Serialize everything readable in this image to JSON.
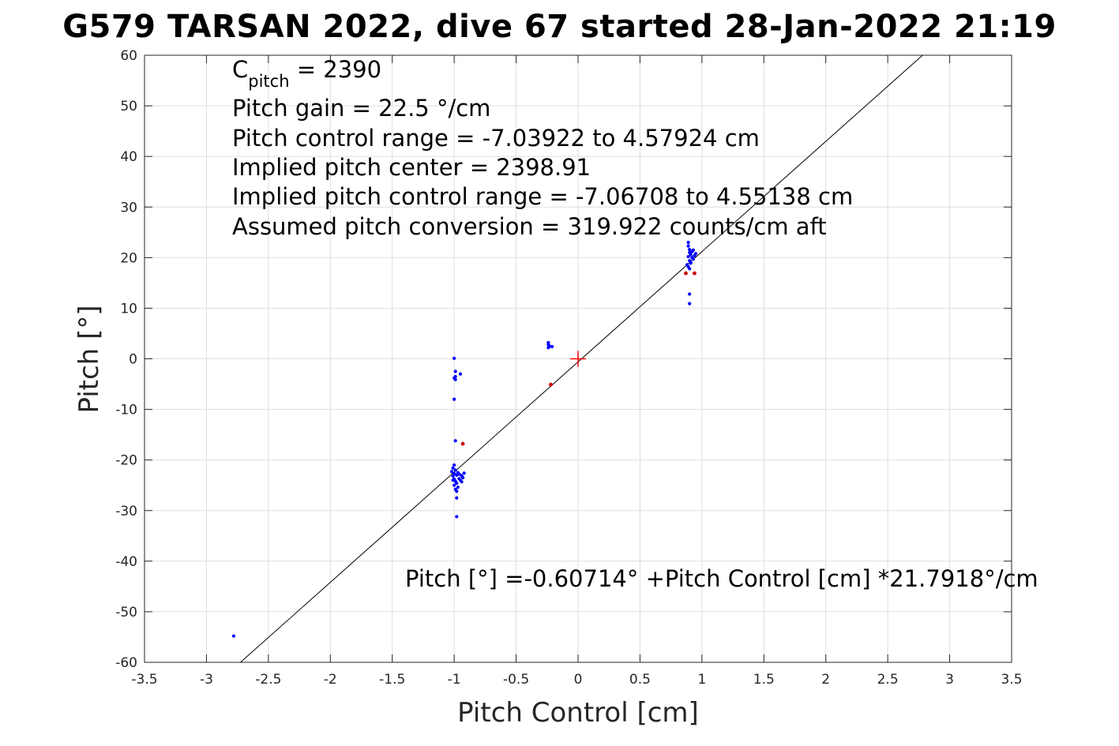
{
  "chart_data": {
    "type": "scatter",
    "title": "G579 TARSAN 2022, dive 67 started 28-Jan-2022 21:19",
    "xlabel": "Pitch Control [cm]",
    "ylabel": "Pitch [°]",
    "xlim": [
      -3.5,
      3.5
    ],
    "ylim": [
      -60,
      60
    ],
    "grid": true,
    "xticks": [
      -3.5,
      -3,
      -2.5,
      -2,
      -1.5,
      -1,
      -0.5,
      0,
      0.5,
      1,
      1.5,
      2,
      2.5,
      3,
      3.5
    ],
    "xtick_labels": [
      "-3.5",
      "-3",
      "-2.5",
      "-2",
      "-1.5",
      "-1",
      "-0.5",
      "0",
      "0.5",
      "1",
      "1.5",
      "2",
      "2.5",
      "3",
      "3.5"
    ],
    "yticks": [
      60,
      50,
      40,
      30,
      20,
      10,
      0,
      -10,
      -20,
      -30,
      -40,
      -50,
      -60
    ],
    "ytick_labels": [
      "60",
      "50",
      "40",
      "30",
      "20",
      "10",
      "0",
      "-10",
      "-20",
      "-30",
      "-40",
      "-50",
      "-60"
    ],
    "annotations": {
      "c_pitch_main": "C",
      "c_pitch_sub": "pitch",
      "c_pitch_value": " = 2390",
      "lines": [
        "Pitch gain = 22.5 °/cm",
        "Pitch control range = -7.03922 to 4.57924 cm",
        "Implied pitch center = 2398.91",
        "Implied pitch control range = -7.06708 to 4.55138 cm",
        "Assumed pitch conversion = 319.922 counts/cm aft"
      ],
      "fit_equation": "Pitch [°] =-0.60714° +Pitch Control [cm] *21.7918°/cm"
    },
    "fit_line": {
      "intercept": -0.60714,
      "slope": 21.7918,
      "color": "#000000"
    },
    "center_marker": {
      "x": 0,
      "y": 0,
      "color": "#ff0000"
    },
    "series": [
      {
        "color": "#0000ff",
        "points": [
          [
            -2.78,
            -54.8
          ],
          [
            -1.0,
            0.1
          ],
          [
            -0.99,
            -2.5
          ],
          [
            -0.99,
            -3.5
          ],
          [
            -1.0,
            -3.8
          ],
          [
            -0.99,
            -4.1
          ],
          [
            -0.95,
            -3.0
          ],
          [
            -1.0,
            -8.0
          ],
          [
            -0.99,
            -16.2
          ],
          [
            -1.0,
            -21.0
          ],
          [
            -1.01,
            -21.6
          ],
          [
            -0.99,
            -22.0
          ],
          [
            -1.02,
            -22.3
          ],
          [
            -0.97,
            -22.5
          ],
          [
            -1.0,
            -22.7
          ],
          [
            -0.98,
            -23.0
          ],
          [
            -1.01,
            -23.2
          ],
          [
            -0.96,
            -22.8
          ],
          [
            -0.94,
            -23.1
          ],
          [
            -0.93,
            -23.5
          ],
          [
            -0.95,
            -24.0
          ],
          [
            -0.92,
            -22.6
          ],
          [
            -1.0,
            -23.8
          ],
          [
            -0.99,
            -24.2
          ],
          [
            -0.98,
            -24.6
          ],
          [
            -1.0,
            -25.0
          ],
          [
            -0.97,
            -25.4
          ],
          [
            -0.99,
            -25.8
          ],
          [
            -0.96,
            -23.7
          ],
          [
            -0.94,
            -24.3
          ],
          [
            -1.01,
            -24.0
          ],
          [
            -0.98,
            -26.2
          ],
          [
            -0.98,
            -27.5
          ],
          [
            -0.98,
            -31.2
          ],
          [
            -0.24,
            3.2
          ],
          [
            -0.24,
            2.8
          ],
          [
            -0.23,
            2.5
          ],
          [
            -0.24,
            2.2
          ],
          [
            -0.21,
            2.4
          ],
          [
            0.89,
            23.0
          ],
          [
            0.89,
            22.3
          ],
          [
            0.9,
            21.6
          ],
          [
            0.9,
            21.0
          ],
          [
            0.91,
            20.6
          ],
          [
            0.89,
            20.2
          ],
          [
            0.92,
            20.0
          ],
          [
            0.93,
            19.7
          ],
          [
            0.9,
            19.4
          ],
          [
            0.91,
            19.0
          ],
          [
            0.94,
            20.4
          ],
          [
            0.95,
            20.8
          ],
          [
            0.92,
            21.2
          ],
          [
            0.88,
            18.6
          ],
          [
            0.89,
            18.2
          ],
          [
            0.9,
            17.8
          ],
          [
            0.91,
            18.9
          ],
          [
            0.93,
            21.5
          ],
          [
            0.9,
            12.8
          ],
          [
            0.9,
            10.9
          ]
        ]
      },
      {
        "color": "#cc0000",
        "points": [
          [
            -0.93,
            -16.8
          ],
          [
            -0.22,
            -5.1
          ],
          [
            0.87,
            16.9
          ],
          [
            0.94,
            16.9
          ]
        ]
      }
    ]
  }
}
